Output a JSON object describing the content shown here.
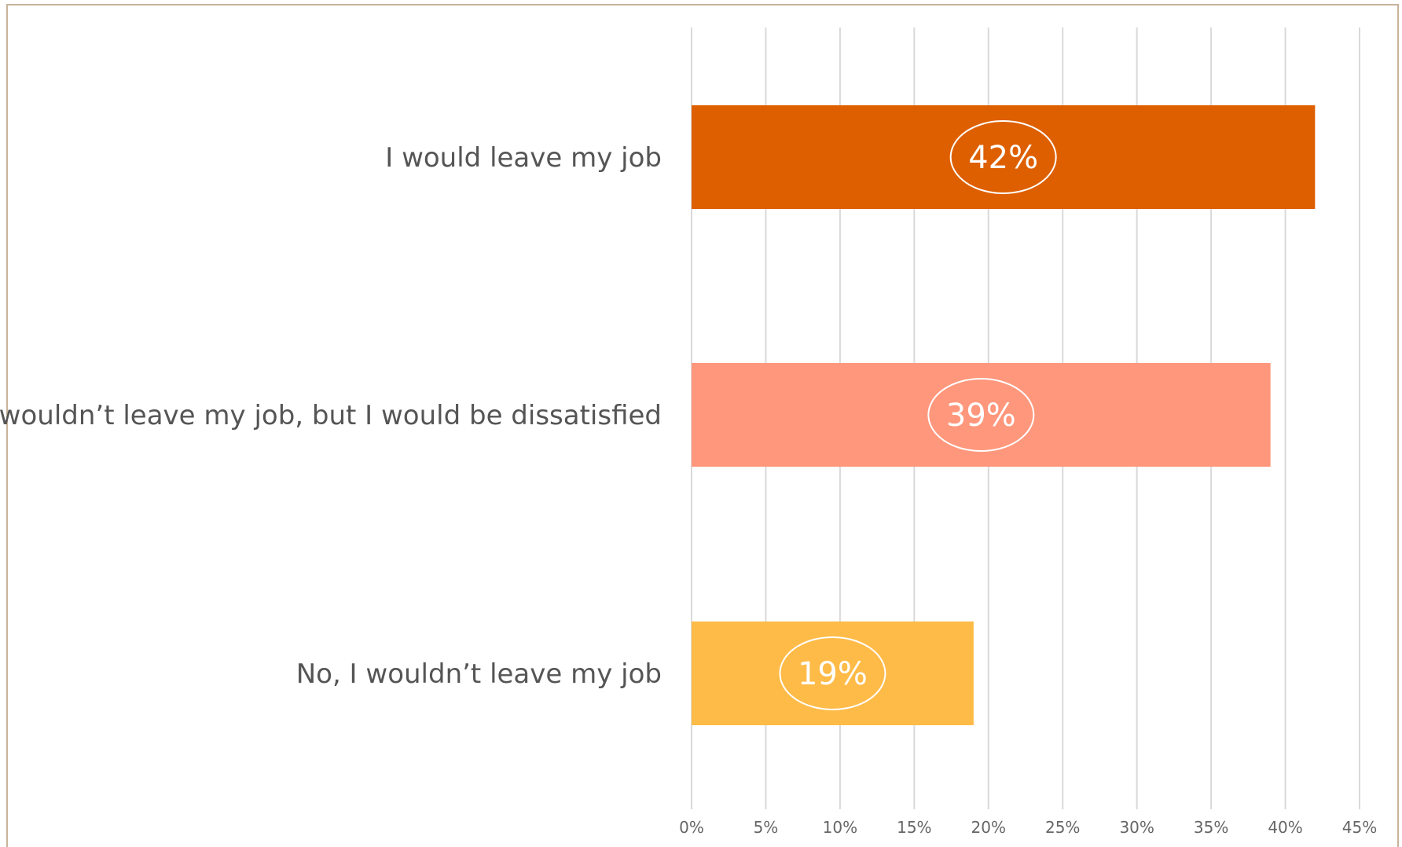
{
  "chart_data": {
    "type": "bar",
    "orientation": "horizontal",
    "categories": [
      "I would leave my job",
      "I wouldn’t leave my job, but I would be dissatisfied",
      "No, I wouldn’t leave my job"
    ],
    "values": [
      42,
      39,
      19
    ],
    "data_labels": [
      "42%",
      "39%",
      "19%"
    ],
    "colors": [
      "#de5f00",
      "#ff977c",
      "#ffbb48"
    ],
    "xlim": [
      0,
      45
    ],
    "xticks": [
      0,
      5,
      10,
      15,
      20,
      25,
      30,
      35,
      40,
      45
    ],
    "xtick_labels": [
      "0%",
      "5%",
      "10%",
      "15%",
      "20%",
      "25%",
      "30%",
      "35%",
      "40%",
      "45%"
    ],
    "grid": "vertical",
    "legend": "none",
    "title": "",
    "xlabel": "",
    "ylabel": ""
  }
}
